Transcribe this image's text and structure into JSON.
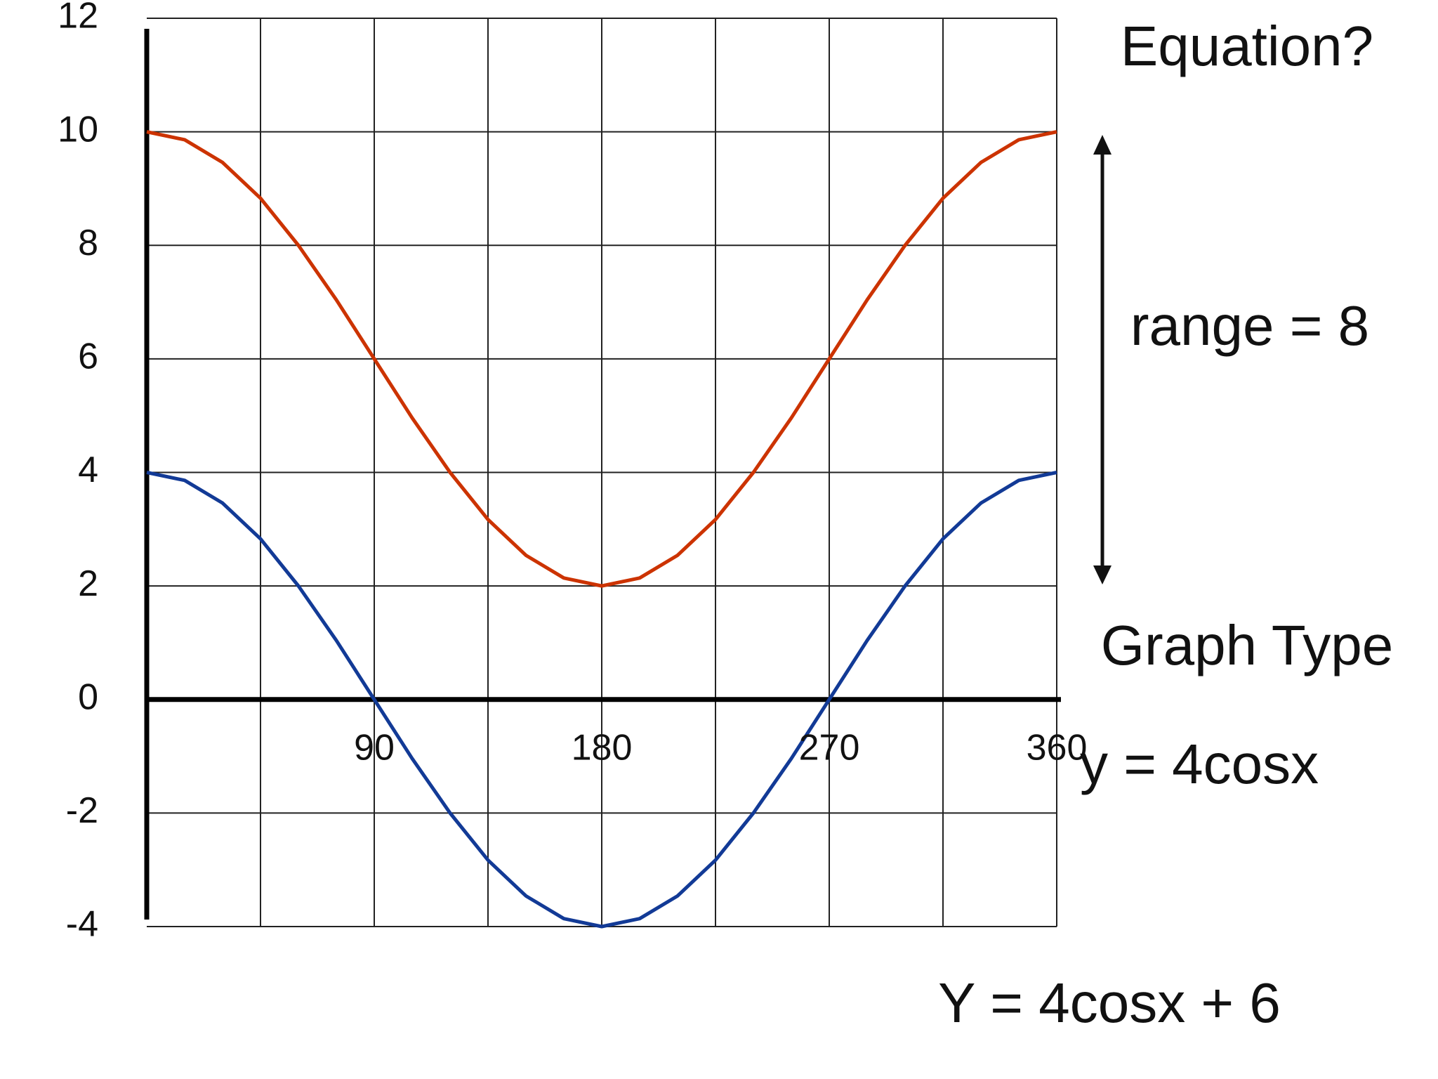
{
  "chart_data": {
    "type": "line",
    "x": [
      0,
      15,
      30,
      45,
      60,
      75,
      90,
      105,
      120,
      135,
      150,
      165,
      180,
      195,
      210,
      225,
      240,
      255,
      270,
      285,
      300,
      315,
      330,
      345,
      360
    ],
    "series": [
      {
        "name": "Y = 4cosx + 6",
        "color": "#cc3300",
        "values": [
          10,
          9.86,
          9.46,
          8.83,
          8,
          7.04,
          6,
          4.96,
          4,
          3.17,
          2.54,
          2.14,
          2,
          2.14,
          2.54,
          3.17,
          4,
          4.96,
          6,
          7.04,
          8,
          8.83,
          9.46,
          9.86,
          10
        ]
      },
      {
        "name": "y = 4cosx",
        "color": "#123a96",
        "values": [
          4,
          3.86,
          3.46,
          2.83,
          2,
          1.04,
          0,
          -1.04,
          -2,
          -2.83,
          -3.46,
          -3.86,
          -4,
          -3.86,
          -3.46,
          -2.83,
          -2,
          -1.04,
          0,
          1.04,
          2,
          2.83,
          3.46,
          3.86,
          4
        ]
      }
    ],
    "xlim": [
      0,
      360
    ],
    "ylim": [
      -4,
      12
    ],
    "xticks": [
      90,
      180,
      270,
      360
    ],
    "yticks": [
      -4,
      -2,
      0,
      2,
      4,
      6,
      8,
      10,
      12
    ],
    "grid": true,
    "annotations": [
      "Equation?",
      "range = 8",
      "Graph Type"
    ]
  }
}
